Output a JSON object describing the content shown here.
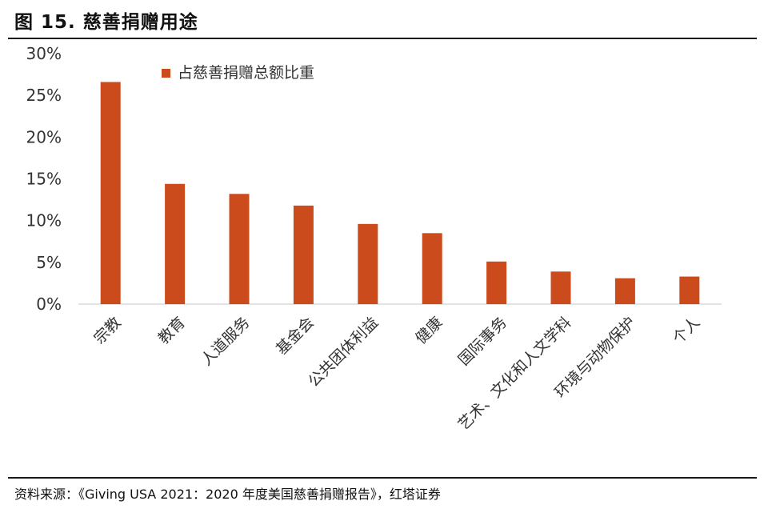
{
  "figure": {
    "title": "图 15. 慈善捐赠用途",
    "source": "资料来源：《Giving USA 2021：2020 年度美国慈善捐赠报告》，红塔证券"
  },
  "chart_data": {
    "type": "bar",
    "categories": [
      "宗教",
      "教育",
      "人道服务",
      "基金会",
      "公共团体利益",
      "健康",
      "国际事务",
      "艺术、文化和人文学科",
      "环境与动物保护",
      "个人"
    ],
    "series": [
      {
        "name": "占慈善捐赠总额比重",
        "values": [
          26.6,
          14.4,
          13.2,
          11.8,
          9.6,
          8.5,
          5.1,
          3.9,
          3.1,
          3.3
        ],
        "color": "#cc4b1c"
      }
    ],
    "y_ticks": [
      "0%",
      "5%",
      "10%",
      "15%",
      "20%",
      "25%",
      "30%"
    ],
    "ylim": [
      0,
      30
    ],
    "grid": false,
    "legend_position": "top-left"
  }
}
